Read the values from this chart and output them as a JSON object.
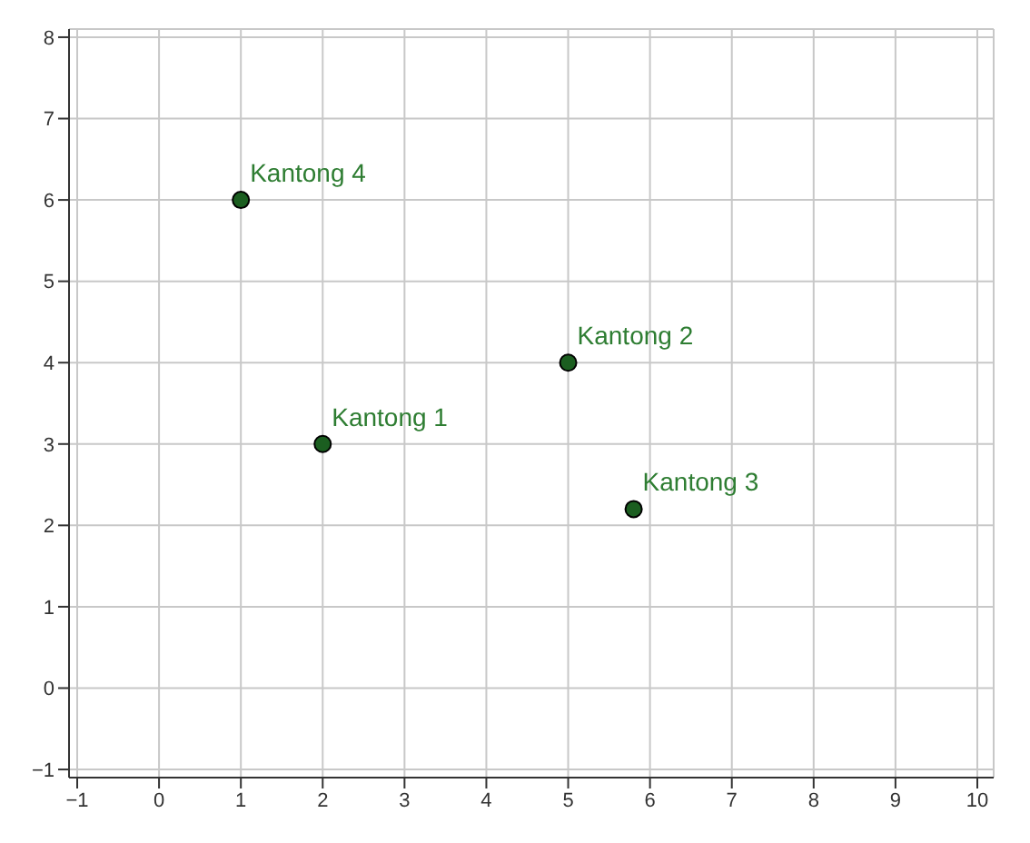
{
  "chart_data": {
    "type": "scatter",
    "x": [
      2,
      5,
      5.8,
      1
    ],
    "values": [
      3,
      4,
      2.2,
      6
    ],
    "color": "#1b5e20",
    "marker": "circle",
    "xlim": [
      -1.1,
      10.2
    ],
    "ylim": [
      -1.1,
      8.1
    ],
    "xticks": [
      {
        "value": -1,
        "label": "−1"
      },
      0,
      1,
      2,
      3,
      4,
      5,
      6,
      7,
      8,
      9,
      10
    ],
    "yticks": [
      {
        "value": -1,
        "label": "−1"
      },
      0,
      1,
      2,
      3,
      4,
      5,
      6,
      7,
      8
    ],
    "grid": true,
    "legend": false,
    "annotations": [
      {
        "text": "Kantong 1",
        "x": 2,
        "y": 3
      },
      {
        "text": "Kantong 2",
        "x": 5,
        "y": 4
      },
      {
        "text": "Kantong 3",
        "x": 5.8,
        "y": 2.2
      },
      {
        "text": "Kantong 4",
        "x": 1,
        "y": 6
      }
    ]
  }
}
